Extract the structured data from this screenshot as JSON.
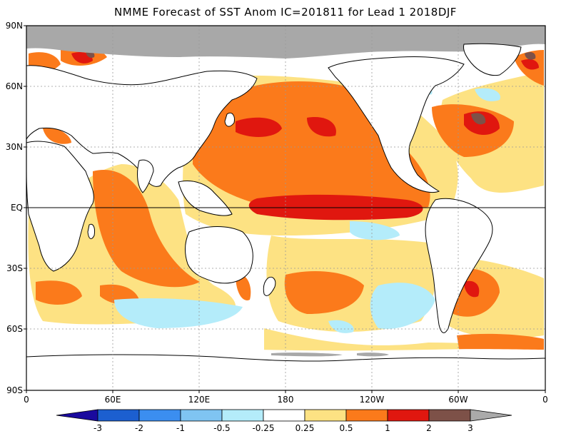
{
  "title": "NMME Forecast of SST Anom IC=201811 for Lead 1 2018DJF",
  "lat_labels": [
    "90N",
    "60N",
    "30N",
    "EQ",
    "30S",
    "60S",
    "90S"
  ],
  "lon_labels": [
    "0",
    "60E",
    "120E",
    "180",
    "120W",
    "60W",
    "0"
  ],
  "colorbar": {
    "labels": [
      "-3",
      "-2",
      "-1",
      "-0.5",
      "-0.25",
      "0.25",
      "0.5",
      "1",
      "2",
      "3"
    ],
    "colors": [
      "#1a0a9e",
      "#1c5fd0",
      "#3b8ef0",
      "#7fc4f2",
      "#b4ecfa",
      "#ffffff",
      "#fde283",
      "#fb7a1b",
      "#e0170f",
      "#7d5148",
      "#aaaaaa"
    ]
  },
  "map_colors": {
    "ocean_neutral": "#ffffff",
    "land": "#ffffff",
    "coast": "#000000",
    "sea_ice": "#a8a8a8",
    "warm_025": "#fde283",
    "warm_05": "#fb7a1b",
    "warm_1": "#e0170f",
    "warm_2": "#7d5148",
    "cool_025": "#b4ecfa",
    "cool_05": "#7fc4f2"
  },
  "chart_data": {
    "type": "heatmap",
    "title": "NMME Forecast of SST Anom IC=201811 for Lead 1 2018DJF",
    "x_range_lon": [
      0,
      360
    ],
    "y_range_lat": [
      -90,
      90
    ],
    "x_ticks": [
      "0",
      "60E",
      "120E",
      "180",
      "120W",
      "60W",
      "0"
    ],
    "y_ticks": [
      "90N",
      "60N",
      "30N",
      "EQ",
      "30S",
      "60S",
      "90S"
    ],
    "contour_levels": [
      -3,
      -2,
      -1,
      -0.5,
      -0.25,
      0.25,
      0.5,
      1,
      2,
      3
    ],
    "grid": true
  }
}
